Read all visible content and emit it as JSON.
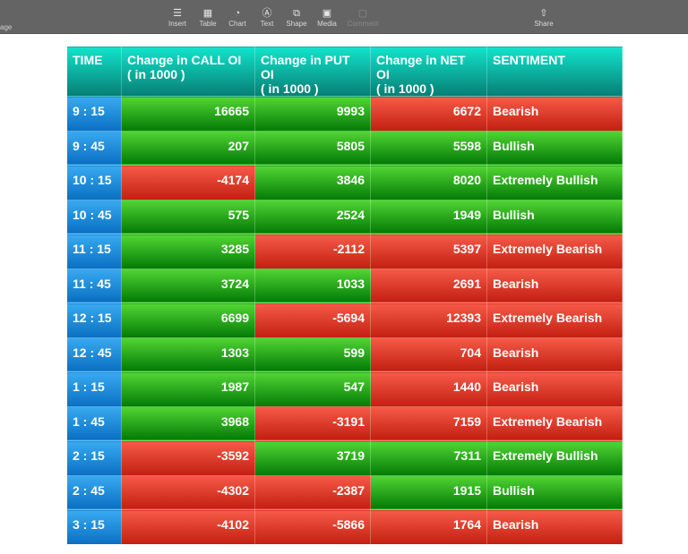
{
  "toolbar": {
    "left_label": "age",
    "items": [
      {
        "label": "Insert",
        "icon": "insert-icon",
        "glyph": "☰"
      },
      {
        "label": "Table",
        "icon": "table-icon",
        "glyph": "▦"
      },
      {
        "label": "Chart",
        "icon": "chart-icon",
        "glyph": "◔"
      },
      {
        "label": "Text",
        "icon": "text-icon",
        "glyph": "Ⓐ"
      },
      {
        "label": "Shape",
        "icon": "shape-icon",
        "glyph": "⧉"
      },
      {
        "label": "Media",
        "icon": "media-icon",
        "glyph": "▣"
      },
      {
        "label": "Comment",
        "icon": "comment-icon",
        "glyph": "▢"
      }
    ],
    "share": {
      "label": "Share",
      "icon": "share-icon",
      "glyph": "⇧"
    }
  },
  "table": {
    "headers": [
      "TIME",
      "Change in CALL OI\n( in 1000 )",
      "Change in PUT OI\n( in 1000 )",
      "Change in NET OI\n( in 1000 )",
      "SENTIMENT"
    ],
    "colors": {
      "green": "#2fa81c",
      "red": "#e43a28",
      "time": "#1e8ad8",
      "header": "#0cb8a8"
    },
    "rows": [
      {
        "time": "9 : 15",
        "call": "16665",
        "call_c": "g",
        "put": "9993",
        "put_c": "g",
        "net": "6672",
        "net_c": "r",
        "sentiment": "Bearish",
        "sent_c": "r"
      },
      {
        "time": "9 : 45",
        "call": "207",
        "call_c": "g",
        "put": "5805",
        "put_c": "g",
        "net": "5598",
        "net_c": "g",
        "sentiment": "Bullish",
        "sent_c": "g"
      },
      {
        "time": "10 : 15",
        "call": "-4174",
        "call_c": "r",
        "put": "3846",
        "put_c": "g",
        "net": "8020",
        "net_c": "g",
        "sentiment": "Extremely Bullish",
        "sent_c": "g"
      },
      {
        "time": "10 : 45",
        "call": "575",
        "call_c": "g",
        "put": "2524",
        "put_c": "g",
        "net": "1949",
        "net_c": "g",
        "sentiment": "Bullish",
        "sent_c": "g"
      },
      {
        "time": "11 : 15",
        "call": "3285",
        "call_c": "g",
        "put": "-2112",
        "put_c": "r",
        "net": "5397",
        "net_c": "r",
        "sentiment": "Extremely Bearish",
        "sent_c": "r"
      },
      {
        "time": "11 : 45",
        "call": "3724",
        "call_c": "g",
        "put": "1033",
        "put_c": "g",
        "net": "2691",
        "net_c": "r",
        "sentiment": "Bearish",
        "sent_c": "r"
      },
      {
        "time": "12 : 15",
        "call": "6699",
        "call_c": "g",
        "put": "-5694",
        "put_c": "r",
        "net": "12393",
        "net_c": "r",
        "sentiment": "Extremely Bearish",
        "sent_c": "r"
      },
      {
        "time": "12 : 45",
        "call": "1303",
        "call_c": "g",
        "put": "599",
        "put_c": "g",
        "net": "704",
        "net_c": "r",
        "sentiment": "Bearish",
        "sent_c": "r"
      },
      {
        "time": "1 : 15",
        "call": "1987",
        "call_c": "g",
        "put": "547",
        "put_c": "g",
        "net": "1440",
        "net_c": "r",
        "sentiment": "Bearish",
        "sent_c": "r"
      },
      {
        "time": "1 : 45",
        "call": "3968",
        "call_c": "g",
        "put": "-3191",
        "put_c": "r",
        "net": "7159",
        "net_c": "r",
        "sentiment": "Extremely Bearish",
        "sent_c": "r"
      },
      {
        "time": "2 : 15",
        "call": "-3592",
        "call_c": "r",
        "put": "3719",
        "put_c": "g",
        "net": "7311",
        "net_c": "g",
        "sentiment": "Extremely Bullish",
        "sent_c": "g"
      },
      {
        "time": "2 : 45",
        "call": "-4302",
        "call_c": "r",
        "put": "-2387",
        "put_c": "r",
        "net": "1915",
        "net_c": "g",
        "sentiment": "Bullish",
        "sent_c": "g"
      },
      {
        "time": "3 : 15",
        "call": "-4102",
        "call_c": "r",
        "put": "-5866",
        "put_c": "r",
        "net": "1764",
        "net_c": "r",
        "sentiment": "Bearish",
        "sent_c": "r"
      }
    ]
  }
}
